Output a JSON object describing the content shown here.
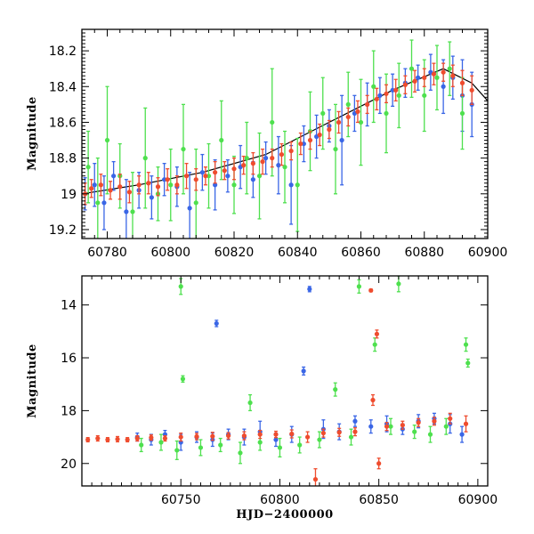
{
  "chart_data": [
    {
      "type": "scatter",
      "xlabel": "",
      "ylabel": "Magnitude",
      "xlim": [
        60772,
        60900
      ],
      "ylim": [
        19.25,
        18.08
      ],
      "y_inverted": true,
      "xticks": [
        60780,
        60800,
        60820,
        60840,
        60860,
        60880,
        60900
      ],
      "yticks": [
        18.2,
        18.4,
        18.6,
        18.8,
        19,
        19.2
      ],
      "ytick_labels": [
        "18.2",
        "18.4",
        "18.6",
        "18.8",
        "19",
        "19.2"
      ],
      "error_bars": true,
      "model_line": {
        "color": "#000000",
        "x": [
          60772,
          60790,
          60810,
          60830,
          60850,
          60870,
          60886,
          60895,
          60900
        ],
        "y": [
          19.0,
          18.95,
          18.88,
          18.78,
          18.6,
          18.42,
          18.3,
          18.38,
          18.48
        ]
      },
      "series": [
        {
          "color": "#3a66e6",
          "x": [
            60773,
            60776,
            60779,
            60782,
            60786,
            60790,
            60794,
            60798,
            60802,
            60806,
            60810,
            60814,
            60818,
            60822,
            60826,
            60830,
            60834,
            60838,
            60842,
            60846,
            60850,
            60854,
            60858,
            60862,
            60866,
            60870,
            60874,
            60878,
            60882,
            60886,
            60889,
            60892,
            60895
          ],
          "y": [
            19.0,
            18.95,
            19.05,
            18.9,
            19.1,
            18.98,
            19.02,
            18.92,
            18.96,
            19.08,
            18.88,
            18.95,
            18.9,
            18.85,
            18.92,
            18.8,
            18.84,
            18.95,
            18.72,
            18.68,
            18.62,
            18.7,
            18.55,
            18.5,
            18.45,
            18.42,
            18.38,
            18.35,
            18.32,
            18.4,
            18.35,
            18.45,
            18.5
          ],
          "err": [
            0.09,
            0.12,
            0.15,
            0.08,
            0.18,
            0.1,
            0.12,
            0.09,
            0.11,
            0.2,
            0.1,
            0.14,
            0.09,
            0.12,
            0.1,
            0.09,
            0.16,
            0.22,
            0.1,
            0.12,
            0.09,
            0.25,
            0.1,
            0.12,
            0.1,
            0.09,
            0.08,
            0.07,
            0.1,
            0.15,
            0.12,
            0.2,
            0.18
          ]
        },
        {
          "color": "#4ee04e",
          "x": [
            60774,
            60777,
            60780,
            60784,
            60788,
            60792,
            60796,
            60800,
            60804,
            60808,
            60812,
            60816,
            60820,
            60824,
            60828,
            60832,
            60836,
            60840,
            60844,
            60848,
            60852,
            60856,
            60860,
            60864,
            60868,
            60872,
            60876,
            60880,
            60884,
            60888,
            60892
          ],
          "y": [
            18.85,
            19.05,
            18.7,
            18.9,
            19.1,
            18.8,
            19.0,
            18.95,
            18.75,
            19.05,
            18.9,
            18.7,
            18.95,
            18.8,
            18.9,
            18.6,
            18.85,
            18.95,
            18.65,
            18.55,
            18.75,
            18.5,
            18.6,
            18.4,
            18.55,
            18.45,
            18.3,
            18.45,
            18.35,
            18.3,
            18.55
          ],
          "err": [
            0.2,
            0.25,
            0.3,
            0.18,
            0.22,
            0.28,
            0.15,
            0.2,
            0.25,
            0.3,
            0.18,
            0.22,
            0.16,
            0.2,
            0.24,
            0.3,
            0.2,
            0.26,
            0.22,
            0.2,
            0.25,
            0.18,
            0.24,
            0.2,
            0.22,
            0.18,
            0.16,
            0.2,
            0.18,
            0.15,
            0.2
          ]
        },
        {
          "color": "#ef4c2e",
          "x": [
            60773,
            60775,
            60778,
            60781,
            60784,
            60787,
            60790,
            60793,
            60796,
            60799,
            60802,
            60805,
            60808,
            60811,
            60814,
            60817,
            60820,
            60823,
            60826,
            60829,
            60832,
            60835,
            60838,
            60841,
            60844,
            60847,
            60850,
            60853,
            60856,
            60859,
            60862,
            60865,
            60868,
            60871,
            60874,
            60877,
            60880,
            60883,
            60886,
            60889,
            60892,
            60895
          ],
          "y": [
            19.0,
            18.97,
            18.95,
            18.98,
            18.96,
            18.99,
            18.95,
            18.94,
            18.96,
            18.92,
            18.95,
            18.9,
            18.92,
            18.9,
            18.88,
            18.87,
            18.86,
            18.84,
            18.83,
            18.82,
            18.8,
            18.78,
            18.76,
            18.72,
            18.7,
            18.67,
            18.64,
            18.6,
            18.57,
            18.54,
            18.5,
            18.47,
            18.44,
            18.42,
            18.39,
            18.37,
            18.35,
            18.33,
            18.32,
            18.34,
            18.38,
            18.42
          ],
          "err": [
            0.06,
            0.05,
            0.06,
            0.05,
            0.07,
            0.06,
            0.05,
            0.06,
            0.05,
            0.06,
            0.05,
            0.07,
            0.06,
            0.05,
            0.06,
            0.05,
            0.06,
            0.05,
            0.06,
            0.07,
            0.05,
            0.06,
            0.05,
            0.06,
            0.05,
            0.06,
            0.05,
            0.06,
            0.05,
            0.06,
            0.05,
            0.06,
            0.05,
            0.06,
            0.05,
            0.06,
            0.05,
            0.06,
            0.05,
            0.06,
            0.07,
            0.08
          ]
        }
      ]
    },
    {
      "type": "scatter",
      "xlabel": "HJD−2400000",
      "ylabel": "Magnitude",
      "xlim": [
        60700,
        60905
      ],
      "ylim": [
        20.85,
        12.9
      ],
      "y_inverted": true,
      "xticks": [
        60750,
        60800,
        60850,
        60900
      ],
      "yticks": [
        14,
        16,
        18,
        20
      ],
      "ytick_labels": [
        "14",
        "16",
        "18",
        "20"
      ],
      "error_bars": true,
      "series": [
        {
          "color": "#3a66e6",
          "x": [
            60728,
            60735,
            60742,
            60750,
            60758,
            60766,
            60768,
            60774,
            60782,
            60790,
            60798,
            60806,
            60812,
            60815,
            60822,
            60830,
            60838,
            60846,
            60854,
            60862,
            60870,
            60878,
            60886,
            60892
          ],
          "y": [
            19.0,
            19.1,
            18.9,
            19.2,
            19.0,
            19.1,
            14.7,
            18.9,
            19.0,
            18.8,
            19.1,
            18.9,
            16.5,
            13.4,
            18.7,
            18.8,
            18.4,
            18.6,
            18.5,
            18.7,
            18.4,
            18.3,
            18.5,
            18.9
          ],
          "err": [
            0.15,
            0.2,
            0.15,
            0.3,
            0.2,
            0.25,
            0.12,
            0.2,
            0.3,
            0.4,
            0.25,
            0.3,
            0.15,
            0.1,
            0.35,
            0.3,
            0.2,
            0.25,
            0.3,
            0.2,
            0.25,
            0.2,
            0.35,
            0.3
          ]
        },
        {
          "color": "#4ee04e",
          "x": [
            60730,
            60740,
            60748,
            60750,
            60751,
            60760,
            60770,
            60780,
            60785,
            60790,
            60800,
            60810,
            60820,
            60828,
            60836,
            60840,
            60848,
            60856,
            60860,
            60868,
            60876,
            60884,
            60894,
            60895
          ],
          "y": [
            19.3,
            19.2,
            19.5,
            13.3,
            16.8,
            19.4,
            19.3,
            19.6,
            17.7,
            19.2,
            19.4,
            19.3,
            19.1,
            17.2,
            19.0,
            13.3,
            15.5,
            18.6,
            13.2,
            18.8,
            18.9,
            18.6,
            15.5,
            16.2
          ],
          "err": [
            0.25,
            0.3,
            0.35,
            0.3,
            0.12,
            0.3,
            0.25,
            0.4,
            0.3,
            0.3,
            0.35,
            0.3,
            0.3,
            0.25,
            0.3,
            0.25,
            0.25,
            0.3,
            0.3,
            0.25,
            0.3,
            0.3,
            0.25,
            0.15
          ]
        },
        {
          "color": "#ef4c2e",
          "x": [
            60703,
            60708,
            60713,
            60718,
            60723,
            60728,
            60735,
            60742,
            60750,
            60758,
            60766,
            60774,
            60782,
            60790,
            60798,
            60806,
            60814,
            60818,
            60822,
            60830,
            60838,
            60846,
            60847,
            60849,
            60850,
            60854,
            60862,
            60870,
            60878,
            60886,
            60894
          ],
          "y": [
            19.1,
            19.05,
            19.1,
            19.08,
            19.1,
            19.05,
            19.02,
            19.05,
            19.0,
            18.98,
            18.97,
            18.95,
            18.95,
            18.9,
            18.9,
            18.88,
            19.0,
            20.6,
            18.85,
            18.82,
            18.8,
            13.45,
            17.6,
            15.1,
            20.0,
            18.6,
            18.55,
            18.45,
            18.4,
            18.3,
            18.5
          ],
          "err": [
            0.08,
            0.1,
            0.08,
            0.1,
            0.08,
            0.1,
            0.1,
            0.1,
            0.15,
            0.12,
            0.15,
            0.12,
            0.15,
            0.15,
            0.12,
            0.15,
            0.2,
            0.4,
            0.15,
            0.15,
            0.15,
            0.05,
            0.2,
            0.15,
            0.2,
            0.15,
            0.15,
            0.15,
            0.15,
            0.2,
            0.3
          ]
        }
      ]
    }
  ]
}
